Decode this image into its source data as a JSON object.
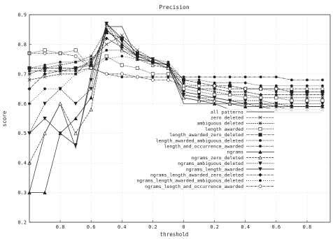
{
  "chart_data": {
    "type": "line",
    "title": "Precision",
    "xlabel": "threshold",
    "ylabel": "score",
    "xlim": [
      -1,
      0.95
    ],
    "ylim": [
      0.2,
      0.9
    ],
    "x_reversed": false,
    "x": [
      -1,
      -0.9,
      -0.8,
      -0.7,
      -0.6,
      -0.5,
      -0.4,
      -0.3,
      -0.2,
      -0.1,
      0,
      0.1,
      0.2,
      0.3,
      0.4,
      0.5,
      0.6,
      0.7,
      0.8,
      0.9
    ],
    "xticks": [
      "0.8",
      "0.6",
      "0.4",
      "0.2",
      "0",
      "0.2",
      "0.4",
      "0.6",
      "0.8"
    ],
    "xtick_values": [
      -0.8,
      -0.6,
      -0.4,
      -0.2,
      0,
      0.2,
      0.4,
      0.6,
      0.8
    ],
    "yticks": [
      "0.2",
      "0.3",
      "0.4",
      "0.5",
      "0.6",
      "0.7",
      "0.8",
      "0.9"
    ],
    "ytick_values": [
      0.2,
      0.3,
      0.4,
      0.5,
      0.6,
      0.7,
      0.8,
      0.9
    ],
    "grid": true,
    "legend_position": "lower-right",
    "series": [
      {
        "name": "all patterns",
        "marker": "none",
        "dash": "",
        "values": [
          0.3,
          0.5,
          0.6,
          0.45,
          0.7,
          0.86,
          0.86,
          0.75,
          0.74,
          0.73,
          0.6,
          0.6,
          0.6,
          0.58,
          0.58,
          0.57,
          0.57,
          0.57,
          0.57,
          0.57
        ]
      },
      {
        "name": "zero deleted",
        "marker": "cross",
        "dash": "3,1",
        "values": [
          0.68,
          0.69,
          0.7,
          0.7,
          0.75,
          0.8,
          0.83,
          0.78,
          0.75,
          0.73,
          0.63,
          0.62,
          0.61,
          0.6,
          0.6,
          0.59,
          0.59,
          0.58,
          0.58,
          0.58
        ]
      },
      {
        "name": "ambiguous deleted",
        "marker": "star",
        "dash": "2,1",
        "values": [
          0.7,
          0.72,
          0.73,
          0.74,
          0.76,
          0.85,
          0.8,
          0.76,
          0.74,
          0.72,
          0.66,
          0.65,
          0.64,
          0.63,
          0.63,
          0.62,
          0.62,
          0.62,
          0.62,
          0.62
        ]
      },
      {
        "name": "length awarded",
        "marker": "square-open",
        "dash": "1,1",
        "values": [
          0.77,
          0.78,
          0.77,
          0.78,
          0.72,
          0.76,
          0.73,
          0.72,
          0.7,
          0.7,
          0.65,
          0.64,
          0.63,
          0.63,
          0.62,
          0.62,
          0.62,
          0.61,
          0.61,
          0.61
        ]
      },
      {
        "name": "length_awarded_zero_deleted",
        "marker": "square",
        "dash": "5,1",
        "values": [
          0.72,
          0.72,
          0.72,
          0.72,
          0.73,
          0.84,
          0.82,
          0.77,
          0.74,
          0.73,
          0.68,
          0.67,
          0.66,
          0.66,
          0.65,
          0.65,
          0.65,
          0.64,
          0.64,
          0.64
        ]
      },
      {
        "name": "length_awarded_ambiguous_deleted",
        "marker": "dot",
        "dash": "1,1",
        "values": [
          0.72,
          0.73,
          0.74,
          0.74,
          0.75,
          0.78,
          0.78,
          0.76,
          0.75,
          0.74,
          0.68,
          0.68,
          0.67,
          0.67,
          0.67,
          0.66,
          0.66,
          0.66,
          0.66,
          0.66
        ]
      },
      {
        "name": "length_and_occurrence_awarded",
        "marker": "dot",
        "dash": "4,1,1,1",
        "values": [
          0.71,
          0.71,
          0.71,
          0.71,
          0.72,
          0.7,
          0.69,
          0.69,
          0.69,
          0.69,
          0.69,
          0.69,
          0.69,
          0.69,
          0.69,
          0.69,
          0.69,
          0.68,
          0.68,
          0.68
        ]
      },
      {
        "name": "ngrams",
        "marker": "triangle",
        "dash": "",
        "values": [
          0.3,
          0.3,
          0.5,
          0.55,
          0.62,
          0.85,
          0.8,
          0.76,
          0.74,
          0.72,
          0.62,
          0.61,
          0.6,
          0.6,
          0.59,
          0.59,
          0.58,
          0.58,
          0.58,
          0.58
        ]
      },
      {
        "name": "ngrams_zero_deleted",
        "marker": "triangle-open",
        "dash": "3,1",
        "values": [
          0.4,
          0.5,
          0.6,
          0.5,
          0.58,
          0.87,
          0.78,
          0.75,
          0.73,
          0.72,
          0.62,
          0.61,
          0.61,
          0.6,
          0.6,
          0.6,
          0.6,
          0.59,
          0.59,
          0.59
        ]
      },
      {
        "name": "ngrams_ambiguous_deleted",
        "marker": "triangle-down",
        "dash": "2,1",
        "values": [
          0.5,
          0.6,
          0.65,
          0.6,
          0.65,
          0.87,
          0.81,
          0.76,
          0.74,
          0.73,
          0.63,
          0.62,
          0.62,
          0.61,
          0.61,
          0.61,
          0.6,
          0.6,
          0.6,
          0.6
        ]
      },
      {
        "name": "ngrams_length_awarded",
        "marker": "triangle-down",
        "dash": "",
        "values": [
          0.5,
          0.55,
          0.5,
          0.46,
          0.68,
          0.87,
          0.82,
          0.77,
          0.75,
          0.73,
          0.64,
          0.63,
          0.62,
          0.61,
          0.6,
          0.6,
          0.59,
          0.59,
          0.59,
          0.59
        ]
      },
      {
        "name": "ngrams_length_awarded_zero_deleted",
        "marker": "diamond",
        "dash": "4,1",
        "values": [
          0.65,
          0.7,
          0.71,
          0.72,
          0.74,
          0.82,
          0.79,
          0.76,
          0.74,
          0.73,
          0.66,
          0.65,
          0.65,
          0.64,
          0.64,
          0.63,
          0.63,
          0.63,
          0.63,
          0.63
        ]
      },
      {
        "name": "ngrams_length_awarded_ambiguous_deleted",
        "marker": "dot",
        "dash": "1,2",
        "values": [
          0.6,
          0.65,
          0.65,
          0.7,
          0.72,
          0.75,
          0.76,
          0.75,
          0.74,
          0.73,
          0.67,
          0.66,
          0.66,
          0.65,
          0.65,
          0.65,
          0.64,
          0.64,
          0.64,
          0.64
        ]
      },
      {
        "name": "ngrams_length_and_occurrence_awarded",
        "marker": "circle-open",
        "dash": "3,1,1,1",
        "values": [
          0.77,
          0.77,
          0.77,
          0.76,
          0.72,
          0.7,
          0.7,
          0.69,
          0.68,
          0.68,
          0.66,
          0.66,
          0.66,
          0.65,
          0.65,
          0.65,
          0.65,
          0.65,
          0.65,
          0.65
        ]
      }
    ]
  }
}
